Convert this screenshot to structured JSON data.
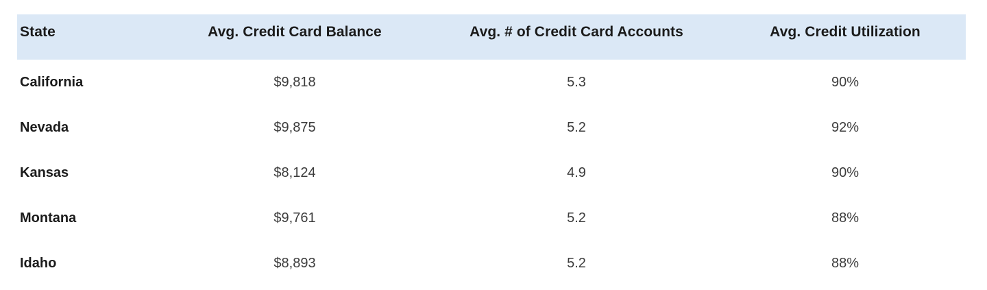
{
  "colors": {
    "header_background": "#dbe8f6",
    "header_text": "#1b1b1b",
    "state_text": "#1b1b1b",
    "value_text": "#3c3c3c",
    "page_background": "#ffffff"
  },
  "table": {
    "columns": [
      {
        "key": "state",
        "label": "State"
      },
      {
        "key": "balance",
        "label": "Avg. Credit Card Balance"
      },
      {
        "key": "accounts",
        "label": "Avg. # of Credit Card Accounts"
      },
      {
        "key": "utilization",
        "label": "Avg. Credit Utilization"
      }
    ],
    "rows": [
      {
        "state": "California",
        "balance": "$9,818",
        "accounts": "5.3",
        "utilization": "90%"
      },
      {
        "state": "Nevada",
        "balance": "$9,875",
        "accounts": "5.2",
        "utilization": "92%"
      },
      {
        "state": "Kansas",
        "balance": "$8,124",
        "accounts": "4.9",
        "utilization": "90%"
      },
      {
        "state": "Montana",
        "balance": "$9,761",
        "accounts": "5.2",
        "utilization": "88%"
      },
      {
        "state": "Idaho",
        "balance": "$8,893",
        "accounts": "5.2",
        "utilization": "88%"
      }
    ]
  },
  "chart_data": {
    "type": "table",
    "title": "",
    "columns": [
      "State",
      "Avg. Credit Card Balance",
      "Avg. # of Credit Card Accounts",
      "Avg. Credit Utilization"
    ],
    "rows": [
      [
        "California",
        9818,
        5.3,
        "90%"
      ],
      [
        "Nevada",
        9875,
        5.2,
        "92%"
      ],
      [
        "Kansas",
        8124,
        4.9,
        "90%"
      ],
      [
        "Montana",
        9761,
        5.2,
        "88%"
      ],
      [
        "Idaho",
        8893,
        5.2,
        "88%"
      ]
    ],
    "layout": {
      "header_shaded": true,
      "gridlines": false,
      "first_column_bold": true,
      "numeric_columns_alignment": "center"
    }
  }
}
